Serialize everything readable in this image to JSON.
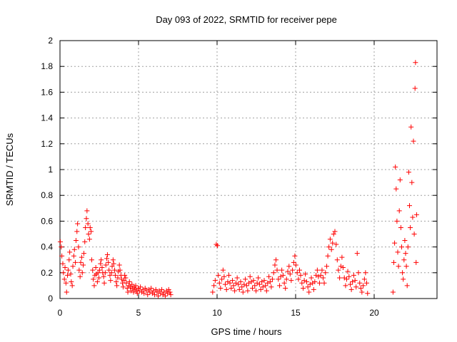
{
  "chart_data": {
    "type": "scatter",
    "title": "Day 093 of 2022, SRMTID for receiver pepe",
    "xlabel": "GPS time / hours",
    "ylabel": "SRMTID / TECUs",
    "xlim": [
      0,
      24
    ],
    "ylim": [
      0,
      2
    ],
    "xticks": [
      0,
      5,
      10,
      15,
      20
    ],
    "yticks": [
      0,
      0.2,
      0.4,
      0.6,
      0.8,
      1,
      1.2,
      1.4,
      1.6,
      1.8,
      2
    ],
    "xtick_labels": [
      "0",
      "5",
      "10",
      "15",
      "20"
    ],
    "ytick_labels": [
      "0",
      "0.2",
      "0.4",
      "0.6",
      "0.8",
      "1",
      "1.2",
      "1.4",
      "1.6",
      "1.8",
      "2"
    ],
    "grid": true,
    "marker": "+",
    "color": "#ff0000",
    "series": [
      {
        "points": [
          [
            0.02,
            0.44
          ],
          [
            0.08,
            0.4
          ],
          [
            0.12,
            0.33
          ],
          [
            0.18,
            0.27
          ],
          [
            0.22,
            0.2
          ],
          [
            0.28,
            0.15
          ],
          [
            0.32,
            0.24
          ],
          [
            0.38,
            0.12
          ],
          [
            0.42,
            0.05
          ],
          [
            0.48,
            0.18
          ],
          [
            0.52,
            0.22
          ],
          [
            0.58,
            0.3
          ],
          [
            0.62,
            0.36
          ],
          [
            0.68,
            0.19
          ],
          [
            0.72,
            0.13
          ],
          [
            0.78,
            0.1
          ],
          [
            0.82,
            0.25
          ],
          [
            0.88,
            0.33
          ],
          [
            0.92,
            0.38
          ],
          [
            0.98,
            0.28
          ],
          [
            1.02,
            0.45
          ],
          [
            1.08,
            0.52
          ],
          [
            1.12,
            0.58
          ],
          [
            1.18,
            0.4
          ],
          [
            1.22,
            0.22
          ],
          [
            1.28,
            0.17
          ],
          [
            1.32,
            0.28
          ],
          [
            1.38,
            0.32
          ],
          [
            1.42,
            0.2
          ],
          [
            1.48,
            0.26
          ],
          [
            1.52,
            0.35
          ],
          [
            1.58,
            0.44
          ],
          [
            1.62,
            0.55
          ],
          [
            1.68,
            0.62
          ],
          [
            1.72,
            0.68
          ],
          [
            1.78,
            0.58
          ],
          [
            1.82,
            0.5
          ],
          [
            1.88,
            0.46
          ],
          [
            1.92,
            0.55
          ],
          [
            1.98,
            0.52
          ],
          [
            2.02,
            0.3
          ],
          [
            2.08,
            0.22
          ],
          [
            2.12,
            0.15
          ],
          [
            2.18,
            0.1
          ],
          [
            2.22,
            0.18
          ],
          [
            2.28,
            0.24
          ],
          [
            2.32,
            0.19
          ],
          [
            2.38,
            0.13
          ],
          [
            2.42,
            0.2
          ],
          [
            2.48,
            0.16
          ],
          [
            2.52,
            0.22
          ],
          [
            2.58,
            0.27
          ],
          [
            2.62,
            0.3
          ],
          [
            2.68,
            0.24
          ],
          [
            2.72,
            0.2
          ],
          [
            2.78,
            0.17
          ],
          [
            2.82,
            0.12
          ],
          [
            2.88,
            0.2
          ],
          [
            2.92,
            0.26
          ],
          [
            2.98,
            0.31
          ],
          [
            3.02,
            0.34
          ],
          [
            3.08,
            0.28
          ],
          [
            3.12,
            0.22
          ],
          [
            3.18,
            0.18
          ],
          [
            3.22,
            0.14
          ],
          [
            3.28,
            0.2
          ],
          [
            3.32,
            0.25
          ],
          [
            3.38,
            0.3
          ],
          [
            3.42,
            0.27
          ],
          [
            3.48,
            0.22
          ],
          [
            3.52,
            0.18
          ],
          [
            3.58,
            0.13
          ],
          [
            3.62,
            0.1
          ],
          [
            3.68,
            0.16
          ],
          [
            3.72,
            0.21
          ],
          [
            3.78,
            0.26
          ],
          [
            3.82,
            0.22
          ],
          [
            3.88,
            0.18
          ],
          [
            3.92,
            0.15
          ],
          [
            3.98,
            0.12
          ],
          [
            4.02,
            0.09
          ],
          [
            4.08,
            0.14
          ],
          [
            4.12,
            0.18
          ],
          [
            4.18,
            0.16
          ],
          [
            4.22,
            0.12
          ],
          [
            4.28,
            0.08
          ],
          [
            4.32,
            0.05
          ],
          [
            4.38,
            0.1
          ],
          [
            4.42,
            0.13
          ],
          [
            4.48,
            0.09
          ],
          [
            4.52,
            0.06
          ],
          [
            4.58,
            0.11
          ],
          [
            4.62,
            0.08
          ],
          [
            4.68,
            0.05
          ],
          [
            4.72,
            0.09
          ],
          [
            4.78,
            0.07
          ],
          [
            4.82,
            0.1
          ],
          [
            4.88,
            0.06
          ],
          [
            4.92,
            0.04
          ],
          [
            4.98,
            0.08
          ],
          [
            5.05,
            0.06
          ],
          [
            5.12,
            0.09
          ],
          [
            5.2,
            0.05
          ],
          [
            5.28,
            0.07
          ],
          [
            5.35,
            0.04
          ],
          [
            5.42,
            0.08
          ],
          [
            5.5,
            0.06
          ],
          [
            5.58,
            0.03
          ],
          [
            5.65,
            0.07
          ],
          [
            5.72,
            0.05
          ],
          [
            5.8,
            0.08
          ],
          [
            5.88,
            0.04
          ],
          [
            5.95,
            0.06
          ],
          [
            6.02,
            0.03
          ],
          [
            6.1,
            0.07
          ],
          [
            6.18,
            0.05
          ],
          [
            6.25,
            0.02
          ],
          [
            6.32,
            0.06
          ],
          [
            6.4,
            0.04
          ],
          [
            6.48,
            0.07
          ],
          [
            6.55,
            0.03
          ],
          [
            6.62,
            0.05
          ],
          [
            6.7,
            0.02
          ],
          [
            6.78,
            0.06
          ],
          [
            6.85,
            0.04
          ],
          [
            6.92,
            0.07
          ],
          [
            7.0,
            0.05
          ],
          [
            7.05,
            0.03
          ],
          [
            9.72,
            0.05
          ],
          [
            9.8,
            0.1
          ],
          [
            9.88,
            0.14
          ],
          [
            9.95,
            0.42
          ],
          [
            10.02,
            0.41
          ],
          [
            10.08,
            0.18
          ],
          [
            10.15,
            0.12
          ],
          [
            10.22,
            0.08
          ],
          [
            10.3,
            0.15
          ],
          [
            10.38,
            0.22
          ],
          [
            10.45,
            0.17
          ],
          [
            10.52,
            0.11
          ],
          [
            10.6,
            0.07
          ],
          [
            10.68,
            0.13
          ],
          [
            10.75,
            0.18
          ],
          [
            10.82,
            0.12
          ],
          [
            10.9,
            0.08
          ],
          [
            10.98,
            0.14
          ],
          [
            11.05,
            0.1
          ],
          [
            11.12,
            0.06
          ],
          [
            11.2,
            0.12
          ],
          [
            11.28,
            0.16
          ],
          [
            11.35,
            0.11
          ],
          [
            11.42,
            0.07
          ],
          [
            11.5,
            0.13
          ],
          [
            11.58,
            0.09
          ],
          [
            11.65,
            0.05
          ],
          [
            11.72,
            0.11
          ],
          [
            11.8,
            0.15
          ],
          [
            11.88,
            0.1
          ],
          [
            11.95,
            0.06
          ],
          [
            12.02,
            0.12
          ],
          [
            12.1,
            0.17
          ],
          [
            12.18,
            0.13
          ],
          [
            12.25,
            0.08
          ],
          [
            12.32,
            0.14
          ],
          [
            12.4,
            0.1
          ],
          [
            12.48,
            0.06
          ],
          [
            12.55,
            0.12
          ],
          [
            12.62,
            0.16
          ],
          [
            12.7,
            0.11
          ],
          [
            12.78,
            0.07
          ],
          [
            12.85,
            0.13
          ],
          [
            12.92,
            0.09
          ],
          [
            13.0,
            0.14
          ],
          [
            13.08,
            0.1
          ],
          [
            13.15,
            0.06
          ],
          [
            13.22,
            0.12
          ],
          [
            13.3,
            0.17
          ],
          [
            13.38,
            0.13
          ],
          [
            13.45,
            0.09
          ],
          [
            13.52,
            0.15
          ],
          [
            13.6,
            0.2
          ],
          [
            13.68,
            0.26
          ],
          [
            13.75,
            0.3
          ],
          [
            13.82,
            0.22
          ],
          [
            13.9,
            0.15
          ],
          [
            13.98,
            0.1
          ],
          [
            14.05,
            0.17
          ],
          [
            14.12,
            0.22
          ],
          [
            14.2,
            0.18
          ],
          [
            14.28,
            0.12
          ],
          [
            14.35,
            0.08
          ],
          [
            14.42,
            0.15
          ],
          [
            14.5,
            0.21
          ],
          [
            14.58,
            0.25
          ],
          [
            14.65,
            0.19
          ],
          [
            14.72,
            0.14
          ],
          [
            14.8,
            0.22
          ],
          [
            14.88,
            0.28
          ],
          [
            14.95,
            0.33
          ],
          [
            15.02,
            0.26
          ],
          [
            15.1,
            0.2
          ],
          [
            15.18,
            0.15
          ],
          [
            15.25,
            0.22
          ],
          [
            15.32,
            0.18
          ],
          [
            15.4,
            0.12
          ],
          [
            15.48,
            0.08
          ],
          [
            15.55,
            0.14
          ],
          [
            15.62,
            0.19
          ],
          [
            15.7,
            0.13
          ],
          [
            15.78,
            0.09
          ],
          [
            15.85,
            0.05
          ],
          [
            15.92,
            0.11
          ],
          [
            16.0,
            0.16
          ],
          [
            16.08,
            0.12
          ],
          [
            16.15,
            0.07
          ],
          [
            16.22,
            0.13
          ],
          [
            16.3,
            0.18
          ],
          [
            16.38,
            0.22
          ],
          [
            16.45,
            0.17
          ],
          [
            16.52,
            0.12
          ],
          [
            16.6,
            0.18
          ],
          [
            16.68,
            0.22
          ],
          [
            16.75,
            0.16
          ],
          [
            16.82,
            0.12
          ],
          [
            16.9,
            0.2
          ],
          [
            16.98,
            0.25
          ],
          [
            17.05,
            0.33
          ],
          [
            17.12,
            0.4
          ],
          [
            17.2,
            0.46
          ],
          [
            17.28,
            0.38
          ],
          [
            17.35,
            0.43
          ],
          [
            17.42,
            0.5
          ],
          [
            17.5,
            0.52
          ],
          [
            17.58,
            0.42
          ],
          [
            17.65,
            0.3
          ],
          [
            17.72,
            0.22
          ],
          [
            17.8,
            0.16
          ],
          [
            17.88,
            0.25
          ],
          [
            17.95,
            0.32
          ],
          [
            18.02,
            0.24
          ],
          [
            18.1,
            0.16
          ],
          [
            18.18,
            0.1
          ],
          [
            18.25,
            0.15
          ],
          [
            18.32,
            0.21
          ],
          [
            18.4,
            0.17
          ],
          [
            18.48,
            0.11
          ],
          [
            18.55,
            0.07
          ],
          [
            18.62,
            0.13
          ],
          [
            18.7,
            0.18
          ],
          [
            18.78,
            0.14
          ],
          [
            18.85,
            0.09
          ],
          [
            18.92,
            0.35
          ],
          [
            19.0,
            0.2
          ],
          [
            19.08,
            0.12
          ],
          [
            19.15,
            0.08
          ],
          [
            19.22,
            0.05
          ],
          [
            19.3,
            0.1
          ],
          [
            19.38,
            0.15
          ],
          [
            19.45,
            0.2
          ],
          [
            19.52,
            0.12
          ],
          [
            19.58,
            0.04
          ],
          [
            21.2,
            0.05
          ],
          [
            21.25,
            0.28
          ],
          [
            21.3,
            0.43
          ],
          [
            21.35,
            1.02
          ],
          [
            21.4,
            0.85
          ],
          [
            21.45,
            0.6
          ],
          [
            21.5,
            0.36
          ],
          [
            21.55,
            0.25
          ],
          [
            21.6,
            0.68
          ],
          [
            21.65,
            0.92
          ],
          [
            21.7,
            0.55
          ],
          [
            21.75,
            0.4
          ],
          [
            21.8,
            0.2
          ],
          [
            21.85,
            0.15
          ],
          [
            21.9,
            0.3
          ],
          [
            21.95,
            0.45
          ],
          [
            22.0,
            0.35
          ],
          [
            22.05,
            0.25
          ],
          [
            22.1,
            0.1
          ],
          [
            22.15,
            0.4
          ],
          [
            22.2,
            0.98
          ],
          [
            22.25,
            0.72
          ],
          [
            22.3,
            0.55
          ],
          [
            22.35,
            1.33
          ],
          [
            22.4,
            0.9
          ],
          [
            22.45,
            0.63
          ],
          [
            22.5,
            1.22
          ],
          [
            22.55,
            0.5
          ],
          [
            22.6,
            1.63
          ],
          [
            22.63,
            1.83
          ],
          [
            22.67,
            0.28
          ],
          [
            22.7,
            0.65
          ]
        ]
      }
    ]
  }
}
